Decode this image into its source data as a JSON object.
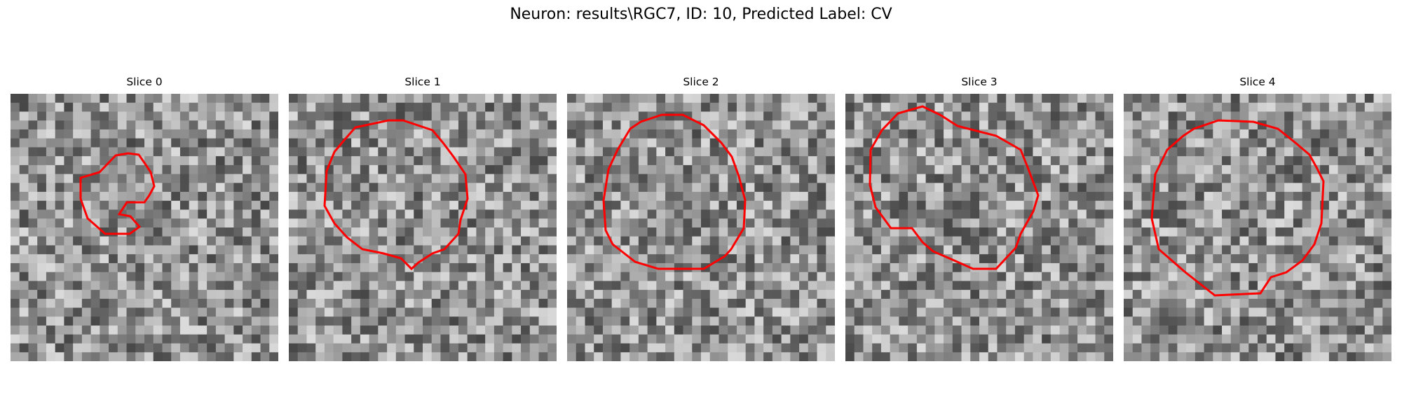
{
  "figure": {
    "title": "Neuron: results\\RGC7, ID: 10, Predicted Label: CV"
  },
  "contour_color": "#ff0000",
  "panels": [
    {
      "title": "Slice 0"
    },
    {
      "title": "Slice 1"
    },
    {
      "title": "Slice 2"
    },
    {
      "title": "Slice 3"
    },
    {
      "title": "Slice 4"
    }
  ]
}
